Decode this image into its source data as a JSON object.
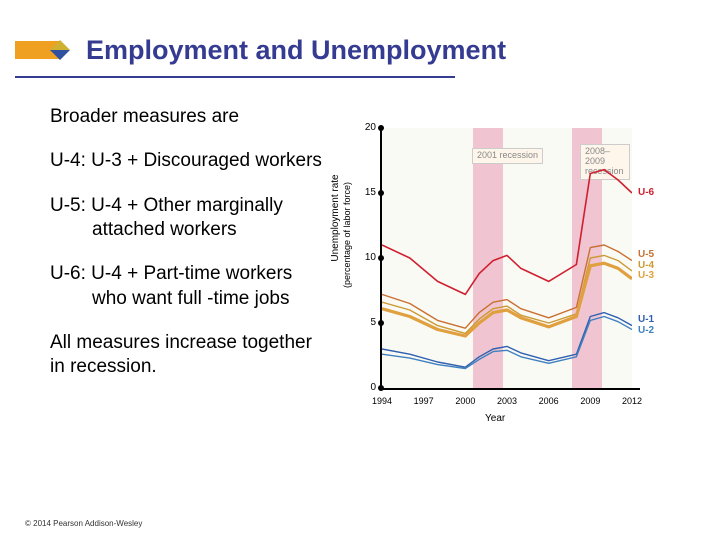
{
  "title": "Employment and Unemployment",
  "intro": "Broader measures are",
  "bullets": [
    {
      "label": "U-4: U-3  + Discouraged workers"
    },
    {
      "label": "U-5: U-4 + Other marginally attached workers"
    },
    {
      "label": "U-6: U-4 + Part-time workers who want full -time jobs"
    }
  ],
  "conclusion": "All measures increase  together in recession.",
  "copyright": "© 2014 Pearson Addison-Wesley",
  "chart": {
    "type": "line",
    "x_label": "Year",
    "y_label_line1": "Unemployment rate",
    "y_label_line2": "(percentage of labor force)",
    "xlim": [
      1994,
      2012
    ],
    "ylim": [
      0,
      20
    ],
    "x_ticks": [
      1994,
      1997,
      2000,
      2003,
      2006,
      2009,
      2012
    ],
    "y_ticks": [
      0,
      5,
      10,
      15,
      20
    ],
    "background_color": "#fafaf5",
    "recession_bands": [
      {
        "start": 2001,
        "end": 2002,
        "label": "2001 recession",
        "color": "#f0c4d0"
      },
      {
        "start": 2008,
        "end": 2009.5,
        "label": "2008–2009 recession",
        "color": "#f0c4d0"
      }
    ],
    "series": [
      {
        "name": "U-6",
        "color": "#d02030",
        "width": 1.6,
        "x": [
          1994,
          1996,
          1998,
          2000,
          2001,
          2002,
          2003,
          2004,
          2006,
          2008,
          2009,
          2010,
          2011,
          2012
        ],
        "y": [
          11.0,
          10.0,
          8.2,
          7.2,
          8.8,
          9.8,
          10.2,
          9.2,
          8.2,
          9.5,
          16.5,
          16.8,
          16.0,
          15.0
        ]
      },
      {
        "name": "U-5",
        "color": "#c97030",
        "width": 1.4,
        "x": [
          1994,
          1996,
          1998,
          2000,
          2001,
          2002,
          2003,
          2004,
          2006,
          2008,
          2009,
          2010,
          2011,
          2012
        ],
        "y": [
          7.2,
          6.5,
          5.2,
          4.6,
          5.8,
          6.6,
          6.8,
          6.1,
          5.4,
          6.2,
          10.8,
          11.0,
          10.5,
          9.8
        ]
      },
      {
        "name": "U-4",
        "color": "#cc9933",
        "width": 1.4,
        "x": [
          1994,
          1996,
          1998,
          2000,
          2001,
          2002,
          2003,
          2004,
          2006,
          2008,
          2009,
          2010,
          2011,
          2012
        ],
        "y": [
          6.6,
          6.0,
          4.8,
          4.2,
          5.3,
          6.1,
          6.3,
          5.6,
          5.0,
          5.7,
          10.0,
          10.2,
          9.8,
          9.0
        ]
      },
      {
        "name": "U-3",
        "color": "#e0a040",
        "width": 3.2,
        "x": [
          1994,
          1996,
          1998,
          2000,
          2001,
          2002,
          2003,
          2004,
          2006,
          2008,
          2009,
          2010,
          2011,
          2012
        ],
        "y": [
          6.1,
          5.5,
          4.5,
          4.0,
          5.0,
          5.8,
          6.0,
          5.4,
          4.7,
          5.5,
          9.4,
          9.6,
          9.2,
          8.4
        ]
      },
      {
        "name": "U-1",
        "color": "#3060b0",
        "width": 1.4,
        "x": [
          1994,
          1996,
          1998,
          2000,
          2001,
          2002,
          2003,
          2004,
          2006,
          2008,
          2009,
          2010,
          2011,
          2012
        ],
        "y": [
          3.0,
          2.6,
          2.0,
          1.6,
          2.4,
          3.0,
          3.2,
          2.7,
          2.1,
          2.6,
          5.5,
          5.8,
          5.4,
          4.8
        ]
      },
      {
        "name": "U-2",
        "color": "#4080c0",
        "width": 1.4,
        "x": [
          1994,
          1996,
          1998,
          2000,
          2001,
          2002,
          2003,
          2004,
          2006,
          2008,
          2009,
          2010,
          2011,
          2012
        ],
        "y": [
          2.6,
          2.3,
          1.8,
          1.5,
          2.2,
          2.8,
          2.9,
          2.4,
          1.9,
          2.4,
          5.2,
          5.5,
          5.1,
          4.5
        ]
      }
    ],
    "series_label_positions": {
      "U-6": {
        "right_y": 15.0
      },
      "U-5": {
        "right_y": 10.2
      },
      "U-4": {
        "right_y": 9.4
      },
      "U-3": {
        "right_y": 8.6
      },
      "U-1": {
        "right_y": 5.2
      },
      "U-2": {
        "right_y": 4.4
      }
    },
    "axis_fontsize": 10,
    "tick_fontsize": 9
  }
}
